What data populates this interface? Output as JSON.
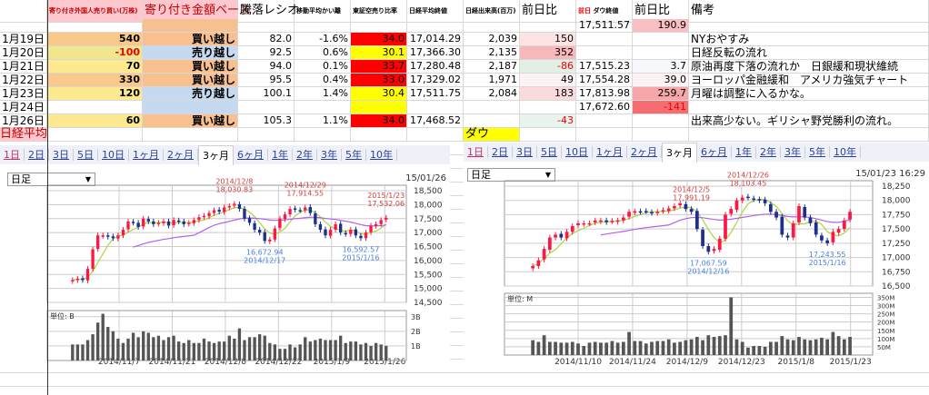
{
  "sheet": {
    "headers": [
      "",
      "寄り付き外国人売り買い(万株)",
      "寄り付き金額ベース",
      "騰落レシオ",
      "移動平均かい離",
      "東証空売り比率",
      "日経平均終値",
      "日経出来高(百万)",
      "前日比",
      "前日",
      "ダウ終値",
      "前日比",
      "備考"
    ],
    "pre_row": {
      "dow_close": "17,511.57",
      "dow_change": "190.9"
    },
    "rows": [
      {
        "date": "1月19日",
        "foreign": "540",
        "basis": "買い越し",
        "ratio": "82.0",
        "ma_dev": "-1.6%",
        "short": "34.0",
        "nikkei": "17,014.29",
        "volume": "2,039",
        "change": "150",
        "dow": "",
        "dow_change": "",
        "note": "NYおやすみ"
      },
      {
        "date": "1月20日",
        "foreign": "-100",
        "basis": "売り越し",
        "ratio": "92.5",
        "ma_dev": "0.6%",
        "short": "30.1",
        "nikkei": "17,366.30",
        "volume": "2,135",
        "change": "352",
        "dow": "",
        "dow_change": "",
        "note": "日経反転の流れ"
      },
      {
        "date": "1月21日",
        "foreign": "70",
        "basis": "買い越し",
        "ratio": "94.0",
        "ma_dev": "0.1%",
        "short": "33.7",
        "nikkei": "17,280.48",
        "volume": "2,187",
        "change": "-86",
        "dow": "17,515.23",
        "dow_change": "3.7",
        "note": "原油再度下落の流れか　日銀緩和現状維続"
      },
      {
        "date": "1月22日",
        "foreign": "330",
        "basis": "買い越し",
        "ratio": "95.5",
        "ma_dev": "0.4%",
        "short": "33.0",
        "nikkei": "17,329.02",
        "volume": "1,971",
        "change": "49",
        "dow": "17,554.28",
        "dow_change": "39.0",
        "note": "ヨーロッパ金融緩和　アメリカ強気チャート"
      },
      {
        "date": "1月23日",
        "foreign": "120",
        "basis": "売り越し",
        "ratio": "100.1",
        "ma_dev": "1.4%",
        "short": "30.4",
        "nikkei": "17,511.75",
        "volume": "2,084",
        "change": "183",
        "dow": "17,813.98",
        "dow_change": "259.7",
        "note": "月曜は調整に入るかな。"
      },
      {
        "date": "1月24日",
        "foreign": "",
        "basis": "",
        "ratio": "",
        "ma_dev": "",
        "short": "",
        "nikkei": "",
        "volume": "",
        "change": "",
        "dow": "17,672.60",
        "dow_change": "-141",
        "note": ""
      },
      {
        "date": "1月26日",
        "foreign": "60",
        "basis": "買い越し",
        "ratio": "105.3",
        "ma_dev": "1.1%",
        "short": "34.0",
        "nikkei": "17,468.52",
        "volume": "",
        "change": "-43",
        "dow": "",
        "dow_change": "",
        "note": "出来高少ない。ギリシャ野党勝利の流れ。"
      }
    ],
    "label_nikkei": "日経平均",
    "label_dow": "ダウ",
    "colors": {
      "buy": "#f8bf8f",
      "sell": "#c5d9f1",
      "short_high": "#ff0000",
      "short_low": "#ffff00",
      "header_pink": "#ffc7ce"
    }
  },
  "charts": [
    {
      "tabs": [
        "1日",
        "2日",
        "3日",
        "5日",
        "10日",
        "1ヶ月",
        "2ヶ月",
        "3ヶ月",
        "6ヶ月",
        "1年",
        "2年",
        "3年",
        "5年",
        "10年"
      ],
      "active_tab": "3ヶ月",
      "interval": "日足",
      "timestamp": "15/01/26",
      "chart_data": {
        "type": "candlestick",
        "ylim": [
          14500,
          18500
        ],
        "yticks": [
          "18,500",
          "18,000",
          "17,500",
          "17,000",
          "16,500",
          "16,000",
          "15,500",
          "15,000",
          "14,500"
        ],
        "closes": [
          15300,
          15350,
          15300,
          15700,
          16400,
          16900,
          16900,
          16850,
          16800,
          16900,
          17100,
          17400,
          17350,
          17200,
          17500,
          17400,
          17300,
          17350,
          17400,
          17250,
          17450,
          17400,
          17300,
          17350,
          17450,
          17550,
          17600,
          17700,
          17800,
          17750,
          17900,
          17950,
          18030,
          17850,
          17500,
          17350,
          17100,
          17000,
          16700,
          16750,
          17150,
          17500,
          17650,
          17850,
          17820,
          17800,
          17900,
          17700,
          17300,
          17100,
          16900,
          17100,
          17300,
          17000,
          16950,
          17100,
          16900,
          16800,
          17000,
          17250,
          17300,
          17450,
          17532
        ],
        "volume_unit": "単位: B",
        "volume_ticks": [
          "3B",
          "2B",
          "1B"
        ],
        "volume_max": 3.2,
        "volumes": [
          1.1,
          1.1,
          1.1,
          1.4,
          1.8,
          2.6,
          3.2,
          2.3,
          2.0,
          1.5,
          1.2,
          1.5,
          1.9,
          1.6,
          2.0,
          1.9,
          1.6,
          1.7,
          1.4,
          1.6,
          1.7,
          1.3,
          1.2,
          1.4,
          1.2,
          1.2,
          1.5,
          1.3,
          1.2,
          1.3,
          1.3,
          1.7,
          1.5,
          2.2,
          1.4,
          1.6,
          1.6,
          1.8,
          1.7,
          1.2,
          1.1,
          0.8,
          0.8,
          1.1,
          0.9,
          1.1,
          1.6,
          1.3,
          1.4,
          1.5,
          1.4,
          1.4,
          1.4,
          1.7,
          1.2,
          1.3,
          1.3,
          1.1,
          1.2,
          1.0,
          1.2,
          1.1,
          1.0
        ],
        "xlabels": [
          "2014/11/7",
          "2014/11/21",
          "2014/12/8",
          "2014/12/22",
          "2015/1/9",
          "2015/1/26"
        ],
        "annotations": [
          {
            "type": "high",
            "date": "2014/12/8",
            "value": "18,030.83",
            "idx": 32
          },
          {
            "type": "high",
            "date": "2014/12/29",
            "value": "17,914.55",
            "idx": 46
          },
          {
            "type": "high",
            "date": "2015/1/23",
            "value": "17,532.06",
            "idx": 62
          },
          {
            "type": "low",
            "date": "2014/12/17",
            "value": "16,672.94",
            "idx": 38
          },
          {
            "type": "low",
            "date": "2015/1/16",
            "value": "16,592.57",
            "idx": 57
          }
        ]
      }
    },
    {
      "tabs": [
        "1日",
        "2日",
        "3日",
        "5日",
        "10日",
        "1ヶ月",
        "2ヶ月",
        "3ヶ月",
        "6ヶ月",
        "1年",
        "2年",
        "3年",
        "5年",
        "10年"
      ],
      "active_tab": "3ヶ月",
      "interval": "日足",
      "timestamp": "15/01/23 16:29",
      "chart_data": {
        "type": "candlestick",
        "ylim": [
          16500,
          18250
        ],
        "yticks": [
          "18,250",
          "18,000",
          "17,750",
          "17,500",
          "17,250",
          "17,000",
          "16,750",
          "16,500"
        ],
        "closes": [
          16850,
          16950,
          17150,
          17350,
          17400,
          17350,
          17450,
          17550,
          17600,
          17600,
          17600,
          17650,
          17650,
          17620,
          17640,
          17650,
          17700,
          17800,
          17810,
          17800,
          17810,
          17780,
          17800,
          17830,
          17860,
          17900,
          17950,
          17850,
          17800,
          17500,
          17200,
          17100,
          17150,
          17330,
          17750,
          17850,
          18000,
          18050,
          18050,
          18020,
          18000,
          17950,
          17800,
          17700,
          17400,
          17350,
          17600,
          17900,
          17700,
          17600,
          17400,
          17300,
          17250,
          17450,
          17500,
          17650,
          17800
        ],
        "volume_unit": "単位: M",
        "volume_ticks": [
          "350M",
          "300M",
          "250M",
          "200M",
          "150M",
          "100M",
          "50M"
        ],
        "volume_max": 350,
        "volumes": [
          90,
          80,
          120,
          80,
          80,
          75,
          75,
          80,
          70,
          55,
          75,
          80,
          75,
          75,
          85,
          75,
          80,
          140,
          85,
          85,
          70,
          80,
          85,
          85,
          95,
          75,
          80,
          90,
          95,
          110,
          90,
          120,
          110,
          115,
          120,
          350,
          95,
          80,
          45,
          55,
          55,
          50,
          80,
          80,
          115,
          95,
          90,
          110,
          95,
          90,
          95,
          105,
          95,
          140,
          115,
          95,
          110
        ],
        "xlabels": [
          "2014/11/10",
          "2014/11/24",
          "2014/12/9",
          "2014/12/23",
          "2015/1/8",
          "2015/1/23"
        ],
        "annotations": [
          {
            "type": "high",
            "date": "2014/12/5",
            "value": "17,991.19",
            "idx": 28
          },
          {
            "type": "high",
            "date": "2014/12/26",
            "value": "18,103.45",
            "idx": 38
          },
          {
            "type": "low",
            "date": "2014/12/16",
            "value": "17,067.59",
            "idx": 31
          },
          {
            "type": "low",
            "date": "2015/1/16",
            "value": "17,243.55",
            "idx": 52
          }
        ]
      }
    }
  ],
  "colors": {
    "up": "#ff1744",
    "down": "#1a2f8f",
    "ma_short": "#a8d840",
    "ma_long": "#b060f0",
    "high_label": "#d04040",
    "low_label": "#4a80e0"
  }
}
